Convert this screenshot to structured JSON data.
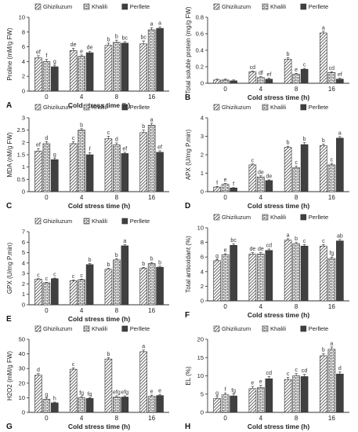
{
  "legend_labels": [
    "Ghiziluzum",
    "Khalili",
    "Perllete"
  ],
  "chart_data": [
    {
      "type": "bar",
      "panel_letter": "A",
      "ylabel": "Proline (mM/g FW)",
      "xlabel": "Cold stress time (h)",
      "categories": [
        "0",
        "4",
        "8",
        "16"
      ],
      "ylim": [
        0,
        10
      ],
      "yticks": [
        0,
        2,
        4,
        6,
        8,
        10
      ],
      "series": [
        {
          "name": "Ghiziluzum",
          "values": [
            4.5,
            5.5,
            6.2,
            6.4
          ],
          "errors": [
            0.3,
            0.3,
            0.3,
            0.4
          ],
          "letters": [
            "ef",
            "de",
            "b",
            "bc"
          ]
        },
        {
          "name": "Khalili",
          "values": [
            4.0,
            4.7,
            6.6,
            8.3
          ],
          "errors": [
            0.3,
            0.2,
            0.3,
            0.3
          ],
          "letters": [
            "f",
            "e",
            "b",
            "a"
          ]
        },
        {
          "name": "Perllete",
          "values": [
            3.3,
            5.2,
            6.5,
            8.5
          ],
          "errors": [
            0.2,
            0.2,
            0.2,
            0.2
          ],
          "letters": [
            "g",
            "de",
            "bc",
            "a"
          ]
        }
      ]
    },
    {
      "type": "bar",
      "panel_letter": "B",
      "ylabel": "Total soluble protein (mg/g FW)",
      "xlabel": "Cold stress time (h)",
      "categories": [
        "0",
        "4",
        "8",
        "16"
      ],
      "ylim": [
        0,
        0.8
      ],
      "yticks": [
        0,
        0.2,
        0.4,
        0.6,
        0.8
      ],
      "series": [
        {
          "name": "Ghiziluzum",
          "values": [
            0.04,
            0.14,
            0.29,
            0.61
          ],
          "errors": [
            0.01,
            0.01,
            0.02,
            0.02
          ],
          "letters": [
            "",
            "cd",
            "b",
            "a"
          ]
        },
        {
          "name": "Khalili",
          "values": [
            0.04,
            0.07,
            0.11,
            0.13
          ],
          "errors": [
            0.01,
            0.01,
            0.01,
            0.01
          ],
          "letters": [
            "",
            "df",
            "e",
            "cd"
          ]
        },
        {
          "name": "Perllete",
          "values": [
            0.03,
            0.05,
            0.17,
            0.05
          ],
          "errors": [
            0.01,
            0.01,
            0.01,
            0.01
          ],
          "letters": [
            "",
            "ef",
            "c",
            "ef"
          ]
        }
      ]
    },
    {
      "type": "bar",
      "panel_letter": "C",
      "ylabel": "MDA (nM/g FW)",
      "xlabel": "Cold stress time (h)",
      "categories": [
        "0",
        "4",
        "8",
        "16"
      ],
      "ylim": [
        0,
        3
      ],
      "yticks": [
        0,
        0.5,
        1,
        1.5,
        2,
        2.5,
        3
      ],
      "series": [
        {
          "name": "Ghiziluzum",
          "values": [
            1.65,
            1.95,
            2.15,
            2.4
          ],
          "errors": [
            0.1,
            0.08,
            0.1,
            0.1
          ],
          "letters": [
            "ef",
            "c",
            "c",
            "b"
          ]
        },
        {
          "name": "Khalili",
          "values": [
            1.95,
            2.5,
            1.9,
            2.7
          ],
          "errors": [
            0.08,
            0.06,
            0.08,
            0.08
          ],
          "letters": [
            "d",
            "b",
            "d",
            "a"
          ]
        },
        {
          "name": "Perllete",
          "values": [
            1.3,
            1.5,
            1.55,
            1.6
          ],
          "errors": [
            0.05,
            0.08,
            0.05,
            0.06
          ],
          "letters": [
            "g",
            "f",
            "ef",
            "ef"
          ]
        }
      ]
    },
    {
      "type": "bar",
      "panel_letter": "D",
      "ylabel": "APX (U/mg P.min)",
      "xlabel": "Cold stress time (h)",
      "categories": [
        "0",
        "4",
        "8",
        "16"
      ],
      "ylim": [
        0,
        4
      ],
      "yticks": [
        0,
        1,
        2,
        3,
        4
      ],
      "series": [
        {
          "name": "Ghiziluzum",
          "values": [
            0.25,
            1.45,
            2.4,
            2.5
          ],
          "errors": [
            0.03,
            0.05,
            0.06,
            0.08
          ],
          "letters": [
            "f",
            "c",
            "b",
            "b"
          ]
        },
        {
          "name": "Khalili",
          "values": [
            0.4,
            0.8,
            1.3,
            1.45
          ],
          "errors": [
            0.04,
            0.06,
            0.08,
            0.08
          ],
          "letters": [
            "e",
            "de",
            "c",
            "c"
          ]
        },
        {
          "name": "Perllete",
          "values": [
            0.2,
            0.6,
            2.55,
            2.9
          ],
          "errors": [
            0.02,
            0.04,
            0.1,
            0.08
          ],
          "letters": [
            "f",
            "de",
            "b",
            "a"
          ]
        }
      ]
    },
    {
      "type": "bar",
      "panel_letter": "E",
      "ylabel": "GPX (U/mg P.min)",
      "xlabel": "Cold stress time (h)",
      "categories": [
        "0",
        "4",
        "8",
        "16"
      ],
      "ylim": [
        0,
        7
      ],
      "yticks": [
        0,
        1,
        2,
        3,
        4,
        5,
        6,
        7
      ],
      "series": [
        {
          "name": "Ghiziluzum",
          "values": [
            2.45,
            2.3,
            3.4,
            3.5
          ],
          "errors": [
            0.05,
            0.08,
            0.1,
            0.08
          ],
          "letters": [
            "c",
            "c",
            "b",
            "b"
          ]
        },
        {
          "name": "Khalili",
          "values": [
            2.1,
            2.4,
            4.3,
            3.95
          ],
          "errors": [
            0.05,
            0.06,
            0.12,
            0.1
          ],
          "letters": [
            "c",
            "c",
            "b",
            "b"
          ]
        },
        {
          "name": "Perllete",
          "values": [
            2.5,
            3.85,
            5.65,
            3.6
          ],
          "errors": [
            0.06,
            0.1,
            0.1,
            0.1
          ],
          "letters": [
            "c",
            "b",
            "a",
            "b"
          ]
        }
      ]
    },
    {
      "type": "bar",
      "panel_letter": "F",
      "ylabel": "Total antioxidant (%)",
      "xlabel": "Cold stress time (h)",
      "categories": [
        "0",
        "4",
        "8",
        "16"
      ],
      "ylim": [
        0,
        10
      ],
      "yticks": [
        0,
        2,
        4,
        6,
        8,
        10
      ],
      "series": [
        {
          "name": "Ghiziluzum",
          "values": [
            5.5,
            6.4,
            8.3,
            7.5
          ],
          "errors": [
            0.15,
            0.2,
            0.2,
            0.2
          ],
          "letters": [
            "g",
            "de",
            "a",
            "c"
          ]
        },
        {
          "name": "Khalili",
          "values": [
            6.3,
            6.4,
            7.8,
            5.8
          ],
          "errors": [
            0.15,
            0.2,
            0.2,
            0.2
          ],
          "letters": [
            "e",
            "de",
            "b",
            "fg"
          ]
        },
        {
          "name": "Perllete",
          "values": [
            7.6,
            6.9,
            7.5,
            8.2
          ],
          "errors": [
            0.2,
            0.2,
            0.2,
            0.2
          ],
          "letters": [
            "bc",
            "cd",
            "c",
            "ab"
          ]
        }
      ]
    },
    {
      "type": "bar",
      "panel_letter": "G",
      "ylabel": "H2O2 (mM/g FW)",
      "xlabel": "Cold stress time (h)",
      "categories": [
        "0",
        "4",
        "8",
        "16"
      ],
      "ylim": [
        0,
        50
      ],
      "yticks": [
        0,
        10,
        20,
        30,
        40,
        50
      ],
      "series": [
        {
          "name": "Ghiziluzum",
          "values": [
            25.5,
            29.5,
            36.5,
            41.5
          ],
          "errors": [
            1.0,
            1.0,
            1.0,
            1.2
          ],
          "letters": [
            "d",
            "c",
            "b",
            "a"
          ]
        },
        {
          "name": "Khalili",
          "values": [
            9.0,
            10.0,
            10.5,
            11.0
          ],
          "errors": [
            0.8,
            0.8,
            0.8,
            0.8
          ],
          "letters": [
            "g",
            "fg",
            "efg",
            "e"
          ]
        },
        {
          "name": "Perllete",
          "values": [
            6.5,
            9.5,
            10.5,
            11.5
          ],
          "errors": [
            0.5,
            0.5,
            0.8,
            0.8
          ],
          "letters": [
            "h",
            "fg",
            "efg",
            "e"
          ]
        }
      ]
    },
    {
      "type": "bar",
      "panel_letter": "H",
      "ylabel": "EL (%)",
      "xlabel": "Cold stress time (h)",
      "categories": [
        "0",
        "4",
        "8",
        "16"
      ],
      "ylim": [
        0,
        20
      ],
      "yticks": [
        0,
        5,
        10,
        15,
        20
      ],
      "series": [
        {
          "name": "Ghiziluzum",
          "values": [
            3.8,
            6.5,
            9.0,
            15.5
          ],
          "errors": [
            0.5,
            0.6,
            0.6,
            0.6
          ],
          "letters": [
            "g",
            "e",
            "c",
            "b"
          ]
        },
        {
          "name": "Khalili",
          "values": [
            4.8,
            6.8,
            10.0,
            17.3
          ],
          "errors": [
            0.5,
            0.6,
            0.6,
            0.6
          ],
          "letters": [
            "f",
            "e",
            "c",
            "a"
          ]
        },
        {
          "name": "Perllete",
          "values": [
            4.5,
            9.2,
            9.8,
            10.5
          ],
          "errors": [
            0.5,
            0.6,
            0.6,
            0.6
          ],
          "letters": [
            "fg",
            "cd",
            "cd",
            "d"
          ]
        }
      ]
    }
  ]
}
